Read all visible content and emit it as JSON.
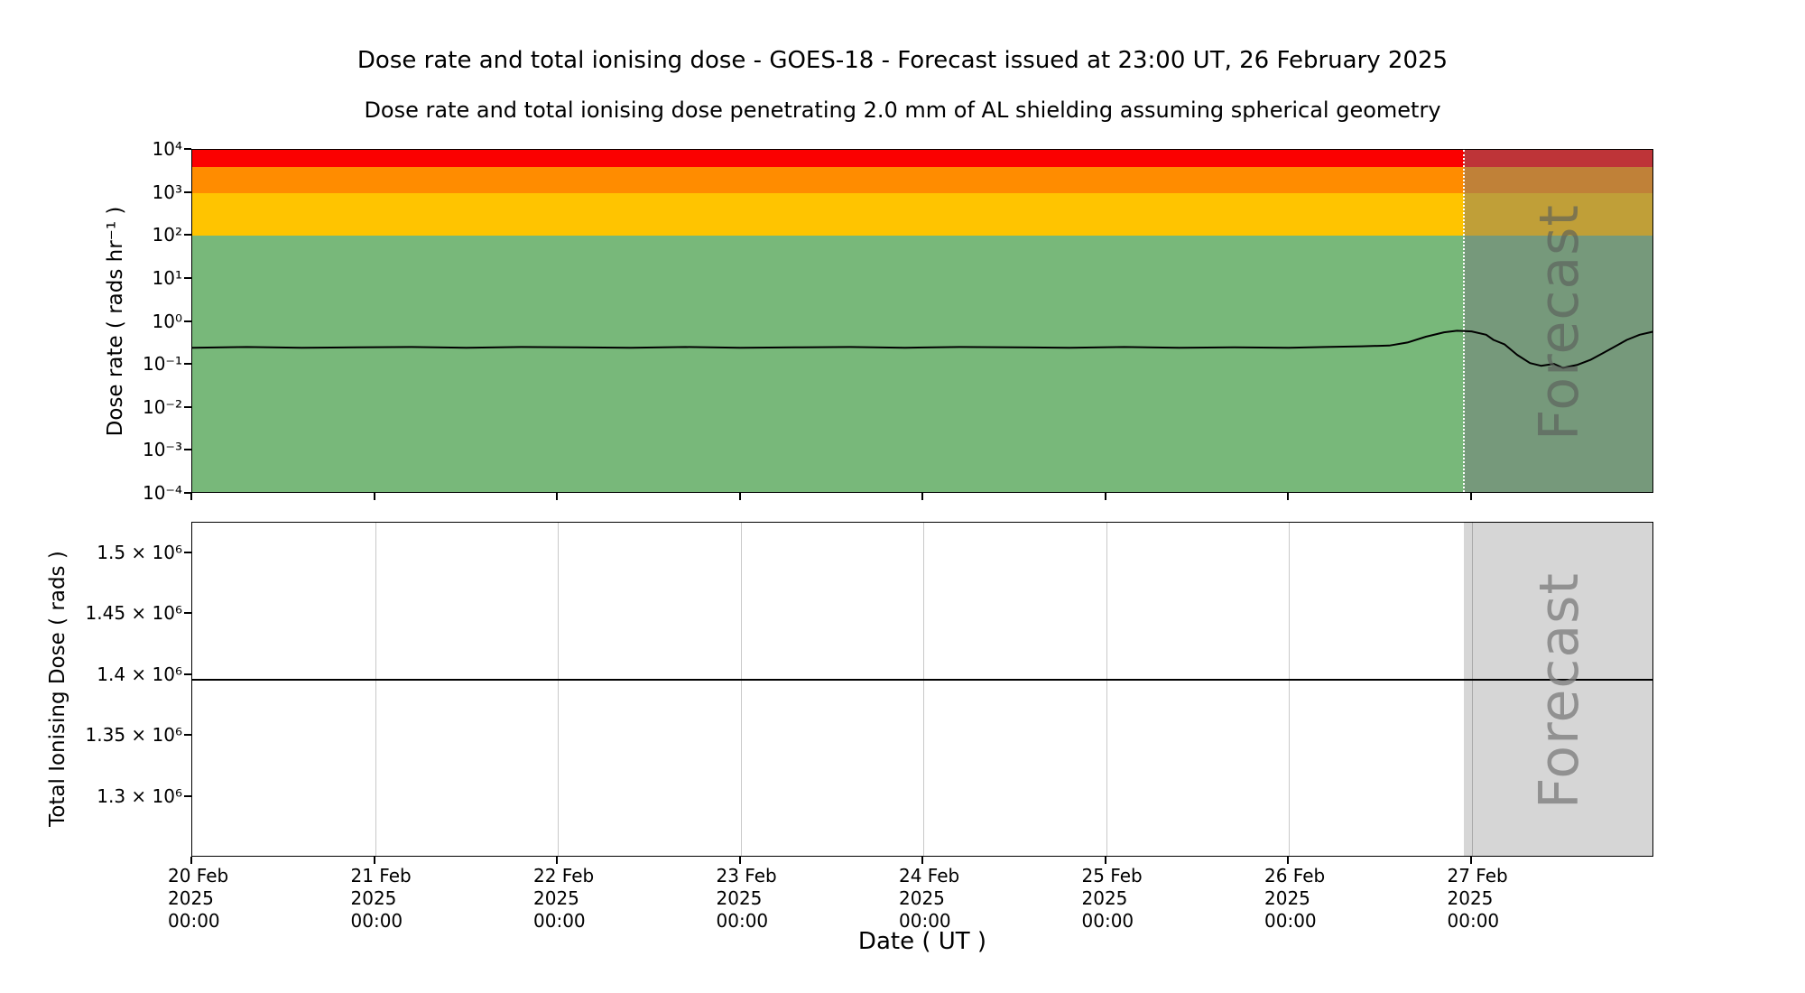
{
  "page": {
    "title": "Dose rate and total ionising dose - GOES-18 - Forecast issued at 23:00 UT, 26 February 2025",
    "subtitle": "Dose rate and total ionising dose penetrating 2.0 mm of AL shielding assuming spherical geometry"
  },
  "x_axis": {
    "label": "Date ( UT )",
    "range_days": [
      0,
      8
    ],
    "start_date": "20 Feb 2025 00:00",
    "tick_days": [
      0,
      1,
      2,
      3,
      4,
      5,
      6,
      7
    ],
    "tick_labels": [
      [
        "20 Feb",
        "2025",
        "00:00"
      ],
      [
        "21 Feb",
        "2025",
        "00:00"
      ],
      [
        "22 Feb",
        "2025",
        "00:00"
      ],
      [
        "23 Feb",
        "2025",
        "00:00"
      ],
      [
        "24 Feb",
        "2025",
        "00:00"
      ],
      [
        "25 Feb",
        "2025",
        "00:00"
      ],
      [
        "26 Feb",
        "2025",
        "00:00"
      ],
      [
        "27 Feb",
        "2025",
        "00:00"
      ]
    ]
  },
  "chart_data": [
    {
      "type": "line",
      "panel": "dose_rate",
      "ylabel": "Dose rate ( rads hr⁻¹ )",
      "yscale": "log",
      "ylim": [
        0.0001,
        10000
      ],
      "ytick_values": [
        10000,
        1000,
        100,
        10,
        1,
        0.1,
        0.01,
        0.001,
        0.0001
      ],
      "ytick_labels": [
        "10⁴",
        "10³",
        "10²",
        "10¹",
        "10⁰",
        "10⁻¹",
        "10⁻²",
        "10⁻³",
        "10⁻⁴"
      ],
      "grid": false,
      "bands": [
        {
          "name": "green-nominal",
          "from": 0.0001,
          "to": 100,
          "color": "#78b87a"
        },
        {
          "name": "yellow-elevated",
          "from": 100,
          "to": 1000,
          "color": "#ffc400"
        },
        {
          "name": "orange-high",
          "from": 1000,
          "to": 4000,
          "color": "#ff8c00"
        },
        {
          "name": "red-severe",
          "from": 4000,
          "to": 10000,
          "color": "#fb0000"
        }
      ],
      "forecast_start_day": 6.9583,
      "forecast_label": "Forecast",
      "forecast_overlay_color": "rgba(115,115,125,0.45)",
      "forecast_divider_color": "#ffffff",
      "forecast_label_color": "rgba(90,95,90,0.65)",
      "series": [
        {
          "name": "dose-rate",
          "color": "#000000",
          "x": [
            0,
            0.3,
            0.6,
            0.9,
            1.2,
            1.5,
            1.8,
            2.1,
            2.4,
            2.7,
            3.0,
            3.3,
            3.6,
            3.9,
            4.2,
            4.5,
            4.8,
            5.1,
            5.4,
            5.7,
            6.0,
            6.2,
            6.4,
            6.55,
            6.65,
            6.75,
            6.85,
            6.92,
            7.0,
            7.08,
            7.12,
            7.18,
            7.25,
            7.32,
            7.38,
            7.45,
            7.5,
            7.58,
            7.65,
            7.75,
            7.85,
            7.92,
            8.0
          ],
          "y": [
            0.25,
            0.26,
            0.25,
            0.255,
            0.26,
            0.25,
            0.26,
            0.255,
            0.25,
            0.26,
            0.25,
            0.255,
            0.26,
            0.25,
            0.26,
            0.255,
            0.25,
            0.26,
            0.25,
            0.255,
            0.25,
            0.26,
            0.27,
            0.28,
            0.33,
            0.45,
            0.57,
            0.62,
            0.6,
            0.5,
            0.38,
            0.3,
            0.17,
            0.11,
            0.095,
            0.105,
            0.085,
            0.1,
            0.13,
            0.22,
            0.38,
            0.5,
            0.6
          ]
        }
      ]
    },
    {
      "type": "line",
      "panel": "total_ionising_dose",
      "ylabel": "Total Ionising Dose ( rads )",
      "yscale": "linear",
      "ylim": [
        1250000,
        1525000
      ],
      "ytick_values": [
        1500000,
        1450000,
        1400000,
        1350000,
        1300000
      ],
      "ytick_labels": [
        "1.5 × 10⁶",
        "1.45 × 10⁶",
        "1.4 × 10⁶",
        "1.35 × 10⁶",
        "1.3 × 10⁶"
      ],
      "grid": true,
      "bands": [],
      "forecast_start_day": 6.9583,
      "forecast_label": "Forecast",
      "forecast_overlay_color": "rgba(0,0,0,0.16)",
      "forecast_label_color": "rgba(128,128,128,0.8)",
      "series": [
        {
          "name": "total-ionising-dose",
          "color": "#000000",
          "x": [
            0,
            8
          ],
          "y": [
            1396000,
            1396000
          ]
        }
      ]
    }
  ]
}
